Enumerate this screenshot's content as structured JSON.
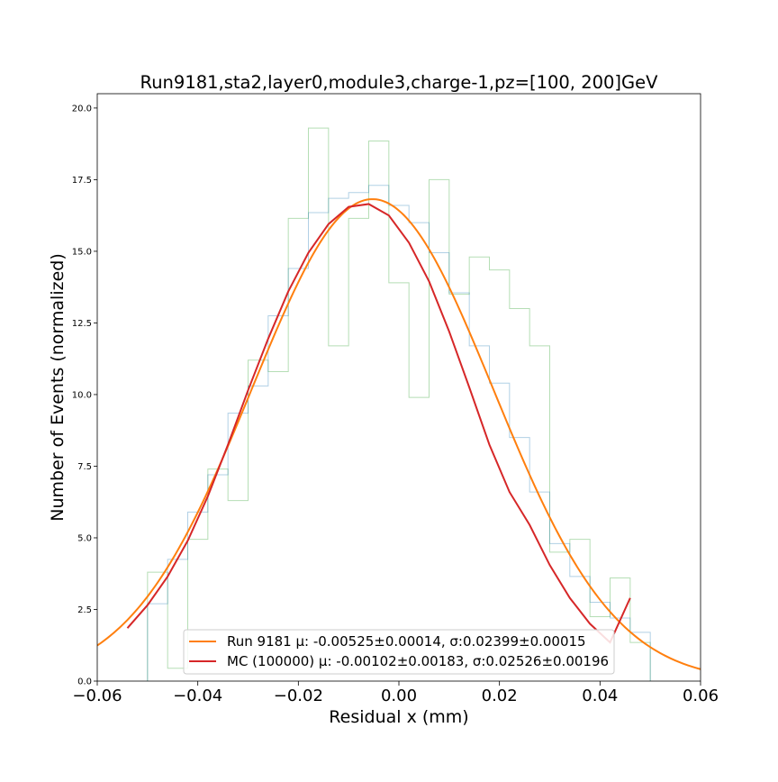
{
  "chart_data": {
    "type": "line",
    "title": "Run9181,sta2,layer0,module3,charge-1,pz=[100, 200]GeV",
    "xlabel": "Residual x (mm)",
    "ylabel": "Number of Events (normalized)",
    "xlim": [
      -0.06,
      0.06
    ],
    "ylim": [
      0,
      20.5
    ],
    "xticks": [
      -0.06,
      -0.04,
      -0.02,
      0.0,
      0.02,
      0.04,
      0.06
    ],
    "xtick_labels": [
      "−0.06",
      "−0.04",
      "−0.02",
      "0.00",
      "0.02",
      "0.04",
      "0.06"
    ],
    "yticks": [
      0,
      2.5,
      5,
      7.5,
      10,
      12.5,
      15,
      17.5,
      20
    ],
    "ytick_labels": [
      "0.0",
      "2.5",
      "5.0",
      "7.5",
      "10.0",
      "12.5",
      "15.0",
      "17.5",
      "20.0"
    ],
    "grid": false,
    "legend_position": "bottom-center",
    "histograms": [
      {
        "color": "#2ca02c",
        "bin_edges": [
          -0.05,
          -0.046,
          -0.042,
          -0.038,
          -0.034,
          -0.03,
          -0.026,
          -0.022,
          -0.018,
          -0.014,
          -0.01,
          -0.006,
          -0.002,
          0.002,
          0.006,
          0.01,
          0.014,
          0.018,
          0.022,
          0.026,
          0.03,
          0.034,
          0.038,
          0.042,
          0.046,
          0.05
        ],
        "values": [
          3.8,
          0.45,
          4.95,
          7.4,
          6.3,
          11.2,
          10.8,
          16.15,
          19.3,
          11.7,
          16.15,
          18.85,
          13.9,
          9.9,
          17.5,
          13.5,
          14.8,
          14.35,
          13.0,
          11.7,
          4.5,
          4.95,
          2.25,
          3.6,
          1.35
        ]
      },
      {
        "color": "#1f77b4",
        "bin_edges": [
          -0.05,
          -0.046,
          -0.042,
          -0.038,
          -0.034,
          -0.03,
          -0.026,
          -0.022,
          -0.018,
          -0.014,
          -0.01,
          -0.006,
          -0.002,
          0.002,
          0.006,
          0.01,
          0.014,
          0.018,
          0.022,
          0.026,
          0.03,
          0.034,
          0.038,
          0.042,
          0.046,
          0.05
        ],
        "values": [
          2.7,
          4.25,
          5.9,
          7.2,
          9.35,
          10.3,
          12.75,
          14.4,
          16.35,
          16.85,
          17.05,
          17.3,
          16.6,
          16.0,
          14.95,
          13.55,
          11.7,
          10.4,
          8.5,
          6.6,
          4.8,
          3.65,
          2.75,
          2.2,
          1.7
        ]
      }
    ],
    "series": [
      {
        "name": "Run 9181 μ: -0.00525±0.00014, σ:0.02399±0.00015",
        "color": "#ff7f0e",
        "kind": "gaussian",
        "amplitude": 16.82,
        "mu": -0.00525,
        "sigma": 0.02399
      },
      {
        "name": "MC (100000) μ: -0.00102±0.00183, σ:0.02526±0.00196",
        "color": "#d62728",
        "kind": "points",
        "x": [
          -0.054,
          -0.05,
          -0.046,
          -0.042,
          -0.038,
          -0.034,
          -0.03,
          -0.026,
          -0.022,
          -0.018,
          -0.014,
          -0.01,
          -0.006,
          -0.002,
          0.002,
          0.006,
          0.01,
          0.014,
          0.018,
          0.022,
          0.026,
          0.03,
          0.034,
          0.038,
          0.042,
          0.046
        ],
        "y": [
          1.85,
          2.65,
          3.65,
          4.9,
          6.45,
          8.25,
          10.15,
          11.95,
          13.6,
          14.95,
          15.95,
          16.55,
          16.65,
          16.25,
          15.3,
          13.95,
          12.2,
          10.25,
          8.25,
          6.6,
          5.45,
          4.05,
          2.9,
          2.0,
          1.35,
          2.9
        ]
      }
    ]
  }
}
